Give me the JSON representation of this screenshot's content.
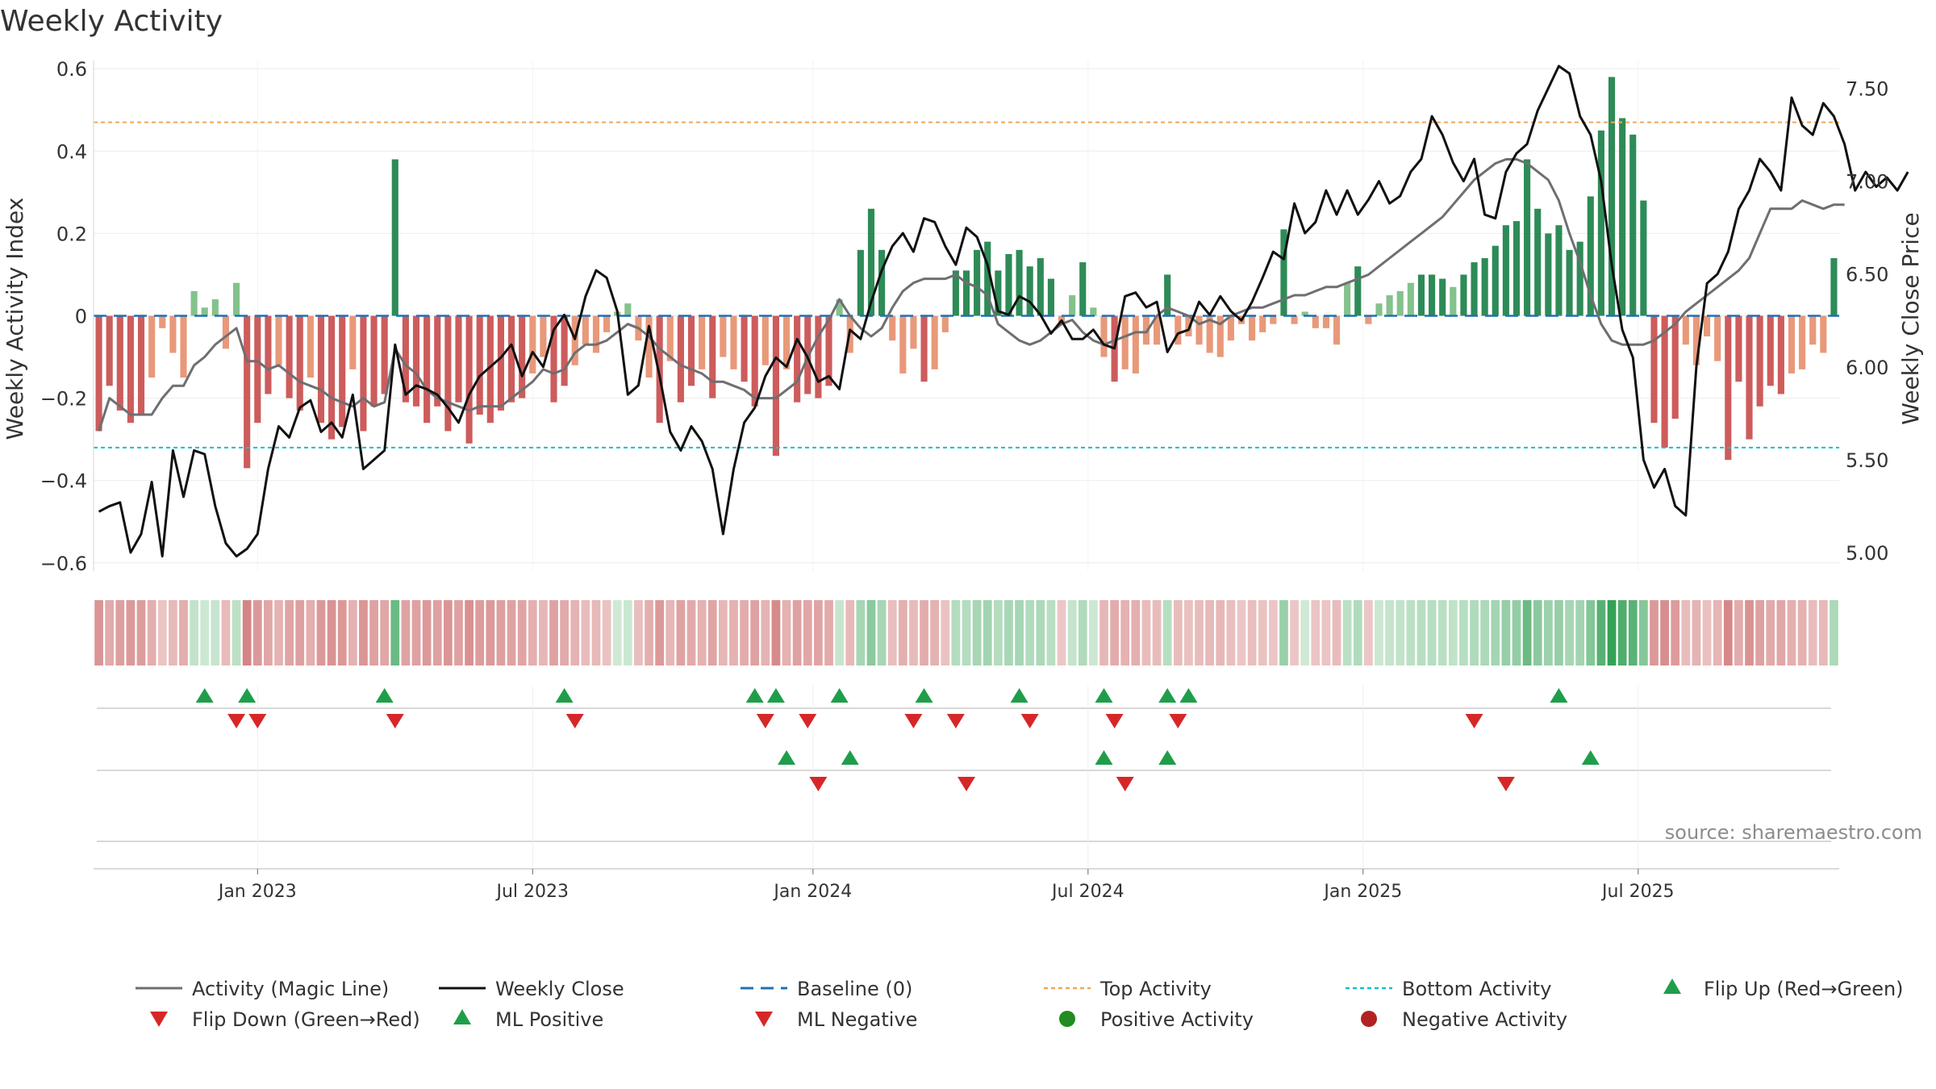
{
  "chart_data": {
    "type": "bar",
    "title": "Weekly Activity",
    "ylabel": "Weekly Activity Index",
    "ylabel_right": "Weekly Close Price",
    "ylim": [
      -0.62,
      0.62
    ],
    "ylim_right": [
      4.9,
      7.65
    ],
    "yticks": [
      {
        "v": 0.6,
        "label": "0.6"
      },
      {
        "v": 0.4,
        "label": "0.4"
      },
      {
        "v": 0.2,
        "label": "0.2"
      },
      {
        "v": 0,
        "label": "0"
      },
      {
        "v": -0.2,
        "label": "−0.2"
      },
      {
        "v": -0.4,
        "label": "−0.4"
      },
      {
        "v": -0.6,
        "label": "−0.6"
      }
    ],
    "yticks_right": [
      {
        "v": 7.5,
        "label": "7.50"
      },
      {
        "v": 7.0,
        "label": "7.00"
      },
      {
        "v": 6.5,
        "label": "6.50"
      },
      {
        "v": 6.0,
        "label": "6.00"
      },
      {
        "v": 5.5,
        "label": "5.50"
      },
      {
        "v": 5.0,
        "label": "5.00"
      }
    ],
    "xticks": [
      {
        "week": 15,
        "label": "Jan 2023"
      },
      {
        "week": 41,
        "label": "Jul 2023"
      },
      {
        "week": 67.5,
        "label": "Jan 2024"
      },
      {
        "week": 93.5,
        "label": "Jul 2024"
      },
      {
        "week": 119.5,
        "label": "Jan 2025"
      },
      {
        "week": 145.5,
        "label": "Jul 2025"
      }
    ],
    "top_activity": 0.47,
    "bottom_activity": -0.32,
    "activity": [
      -0.28,
      -0.17,
      -0.23,
      -0.26,
      -0.24,
      -0.15,
      -0.03,
      -0.09,
      -0.15,
      0.06,
      0.02,
      0.04,
      -0.08,
      0.08,
      -0.37,
      -0.26,
      -0.19,
      -0.12,
      -0.2,
      -0.23,
      -0.15,
      -0.26,
      -0.3,
      -0.27,
      -0.13,
      -0.28,
      -0.22,
      -0.19,
      0.38,
      -0.21,
      -0.22,
      -0.26,
      -0.22,
      -0.28,
      -0.21,
      -0.31,
      -0.24,
      -0.26,
      -0.23,
      -0.21,
      -0.2,
      -0.14,
      -0.1,
      -0.21,
      -0.17,
      -0.12,
      -0.07,
      -0.09,
      -0.04,
      0.01,
      0.03,
      -0.06,
      -0.15,
      -0.26,
      -0.11,
      -0.21,
      -0.17,
      -0.13,
      -0.2,
      -0.1,
      -0.13,
      -0.16,
      -0.22,
      -0.12,
      -0.34,
      -0.13,
      -0.21,
      -0.19,
      -0.2,
      -0.17,
      0.04,
      -0.09,
      0.16,
      0.26,
      0.16,
      -0.06,
      -0.14,
      -0.08,
      -0.16,
      -0.13,
      -0.04,
      0.11,
      0.11,
      0.16,
      0.18,
      0.11,
      0.15,
      0.16,
      0.12,
      0.14,
      0.09,
      -0.02,
      0.05,
      0.13,
      0.02,
      -0.1,
      -0.16,
      -0.13,
      -0.14,
      -0.07,
      -0.07,
      0.1,
      -0.07,
      -0.05,
      -0.07,
      -0.09,
      -0.1,
      -0.06,
      -0.02,
      -0.06,
      -0.04,
      -0.02,
      0.21,
      -0.02,
      0.01,
      -0.03,
      -0.03,
      -0.07,
      0.08,
      0.12,
      -0.02,
      0.03,
      0.05,
      0.06,
      0.08,
      0.1,
      0.1,
      0.09,
      0.07,
      0.1,
      0.13,
      0.14,
      0.17,
      0.22,
      0.23,
      0.38,
      0.26,
      0.2,
      0.22,
      0.16,
      0.18,
      0.29,
      0.45,
      0.58,
      0.48,
      0.44,
      0.28,
      -0.26,
      -0.32,
      -0.25,
      -0.07,
      -0.12,
      -0.05,
      -0.11,
      -0.35,
      -0.16,
      -0.3,
      -0.22,
      -0.17,
      -0.19,
      -0.14,
      -0.13,
      -0.07,
      -0.09,
      0.14
    ],
    "magic_line": [
      -0.28,
      -0.2,
      -0.22,
      -0.24,
      -0.24,
      -0.24,
      -0.2,
      -0.17,
      -0.17,
      -0.12,
      -0.1,
      -0.07,
      -0.05,
      -0.03,
      -0.11,
      -0.11,
      -0.13,
      -0.12,
      -0.14,
      -0.16,
      -0.17,
      -0.18,
      -0.2,
      -0.21,
      -0.22,
      -0.2,
      -0.22,
      -0.21,
      -0.08,
      -0.12,
      -0.14,
      -0.18,
      -0.2,
      -0.21,
      -0.22,
      -0.23,
      -0.22,
      -0.22,
      -0.22,
      -0.2,
      -0.18,
      -0.16,
      -0.13,
      -0.14,
      -0.13,
      -0.09,
      -0.07,
      -0.07,
      -0.06,
      -0.04,
      -0.02,
      -0.03,
      -0.05,
      -0.08,
      -0.1,
      -0.12,
      -0.13,
      -0.14,
      -0.16,
      -0.16,
      -0.17,
      -0.18,
      -0.2,
      -0.2,
      -0.2,
      -0.18,
      -0.16,
      -0.1,
      -0.05,
      -0.01,
      0.04,
      0.0,
      -0.03,
      -0.05,
      -0.03,
      0.02,
      0.06,
      0.08,
      0.09,
      0.09,
      0.09,
      0.1,
      0.08,
      0.07,
      0.05,
      -0.02,
      -0.04,
      -0.06,
      -0.07,
      -0.06,
      -0.04,
      -0.02,
      -0.01,
      -0.04,
      -0.06,
      -0.07,
      -0.06,
      -0.05,
      -0.04,
      -0.04,
      0.0,
      0.02,
      0.01,
      0.0,
      -0.02,
      -0.01,
      -0.02,
      0.0,
      0.01,
      0.02,
      0.02,
      0.03,
      0.04,
      0.05,
      0.05,
      0.06,
      0.07,
      0.07,
      0.08,
      0.09,
      0.1,
      0.12,
      0.14,
      0.16,
      0.18,
      0.2,
      0.22,
      0.24,
      0.27,
      0.3,
      0.33,
      0.35,
      0.37,
      0.38,
      0.38,
      0.37,
      0.35,
      0.33,
      0.28,
      0.2,
      0.13,
      0.05,
      -0.02,
      -0.06,
      -0.07,
      -0.07,
      -0.07,
      -0.06,
      -0.04,
      -0.02,
      0.01,
      0.03,
      0.05,
      0.07,
      0.09,
      0.11,
      0.14,
      0.2,
      0.26,
      0.26,
      0.26,
      0.28,
      0.27,
      0.26,
      0.27,
      0.27
    ],
    "weekly_close": [
      5.22,
      5.25,
      5.27,
      5.0,
      5.1,
      5.38,
      4.98,
      5.55,
      5.3,
      5.55,
      5.53,
      5.25,
      5.05,
      4.98,
      5.02,
      5.1,
      5.45,
      5.68,
      5.62,
      5.78,
      5.82,
      5.65,
      5.7,
      5.62,
      5.85,
      5.45,
      5.5,
      5.55,
      6.12,
      5.85,
      5.9,
      5.88,
      5.85,
      5.78,
      5.7,
      5.85,
      5.95,
      6.0,
      6.05,
      6.12,
      5.95,
      6.08,
      6.0,
      6.2,
      6.28,
      6.15,
      6.38,
      6.52,
      6.48,
      6.3,
      5.85,
      5.9,
      6.22,
      5.95,
      5.65,
      5.55,
      5.68,
      5.6,
      5.45,
      5.1,
      5.45,
      5.7,
      5.78,
      5.95,
      6.05,
      6.0,
      6.15,
      6.05,
      5.92,
      5.95,
      5.88,
      6.2,
      6.15,
      6.35,
      6.52,
      6.65,
      6.72,
      6.62,
      6.8,
      6.78,
      6.65,
      6.55,
      6.75,
      6.7,
      6.55,
      6.3,
      6.28,
      6.38,
      6.35,
      6.28,
      6.18,
      6.25,
      6.15,
      6.15,
      6.2,
      6.12,
      6.1,
      6.38,
      6.4,
      6.32,
      6.35,
      6.08,
      6.18,
      6.2,
      6.35,
      6.28,
      6.38,
      6.3,
      6.25,
      6.35,
      6.48,
      6.62,
      6.58,
      6.88,
      6.72,
      6.78,
      6.95,
      6.82,
      6.95,
      6.82,
      6.9,
      7.0,
      6.88,
      6.92,
      7.05,
      7.12,
      7.35,
      7.25,
      7.1,
      7.0,
      7.12,
      6.82,
      6.8,
      7.05,
      7.15,
      7.2,
      7.38,
      7.5,
      7.62,
      7.58,
      7.35,
      7.25,
      7.0,
      6.55,
      6.2,
      6.05,
      5.5,
      5.35,
      5.45,
      5.25,
      5.2,
      6.0,
      6.45,
      6.5,
      6.62,
      6.85,
      6.95,
      7.12,
      7.05,
      6.95,
      7.45,
      7.3,
      7.25,
      7.42,
      7.35,
      7.2,
      6.95,
      7.05,
      6.97,
      7.02,
      6.95,
      7.05
    ],
    "flip_up_weeks": [
      10,
      14,
      27,
      44,
      62,
      64,
      70,
      78,
      87,
      95,
      101,
      103,
      138
    ],
    "flip_down_weeks": [
      13,
      15,
      28,
      45,
      63,
      67,
      77,
      81,
      88,
      96,
      102,
      130
    ],
    "ml_positive_weeks": [
      65,
      71,
      95,
      101,
      141
    ],
    "ml_negative_weeks": [
      68,
      82,
      97,
      133
    ],
    "source": "source: sharemaestro.com",
    "legend": [
      {
        "key": "activity-magic-line",
        "label": "Activity (Magic Line)"
      },
      {
        "key": "weekly-close",
        "label": "Weekly Close"
      },
      {
        "key": "baseline",
        "label": "Baseline (0)"
      },
      {
        "key": "top-activity",
        "label": "Top Activity"
      },
      {
        "key": "bottom-activity",
        "label": "Bottom Activity"
      },
      {
        "key": "flip-up",
        "label": "Flip Up (Red→Green)"
      },
      {
        "key": "flip-down",
        "label": "Flip Down (Green→Red)"
      },
      {
        "key": "ml-positive",
        "label": "ML Positive"
      },
      {
        "key": "ml-negative",
        "label": "ML Negative"
      },
      {
        "key": "positive-activity",
        "label": "Positive Activity"
      },
      {
        "key": "negative-activity",
        "label": "Negative Activity"
      }
    ],
    "colors": {
      "pos_dark": "#2e8b57",
      "pos_light": "#84c28c",
      "neg_dark": "#cd5c5c",
      "neg_light": "#e8997a",
      "magic_line": "#6e6e73",
      "weekly_close": "#111111",
      "baseline": "#2171b5",
      "top": "#f2a65a",
      "bottom": "#17becf",
      "flip_up": "#1f9e4a",
      "flip_down": "#d62728",
      "positive_dot": "#228b22",
      "negative_dot": "#b22222"
    }
  }
}
